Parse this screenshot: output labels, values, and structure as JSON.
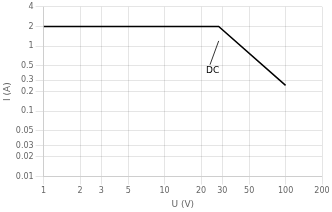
{
  "chart_data": {
    "type": "line",
    "xlabel": "U (V)",
    "ylabel": "I (A)",
    "x": [
      1,
      28,
      100
    ],
    "values": [
      2,
      2,
      0.25
    ],
    "color": "#000000",
    "log": true,
    "grid": true,
    "xlim": [
      1,
      200
    ],
    "ylim": [
      0.01,
      4
    ],
    "xticks": [
      1,
      2,
      3,
      5,
      10,
      20,
      30,
      50,
      100,
      200
    ],
    "yticks": [
      0.01,
      0.02,
      0.03,
      0.05,
      0.1,
      0.2,
      0.3,
      0.5,
      1,
      2,
      4
    ],
    "annotations": [
      {
        "text": "DC",
        "x": 22,
        "y": 0.42,
        "arrow_x": 28,
        "arrow_y": 1.2
      }
    ]
  }
}
